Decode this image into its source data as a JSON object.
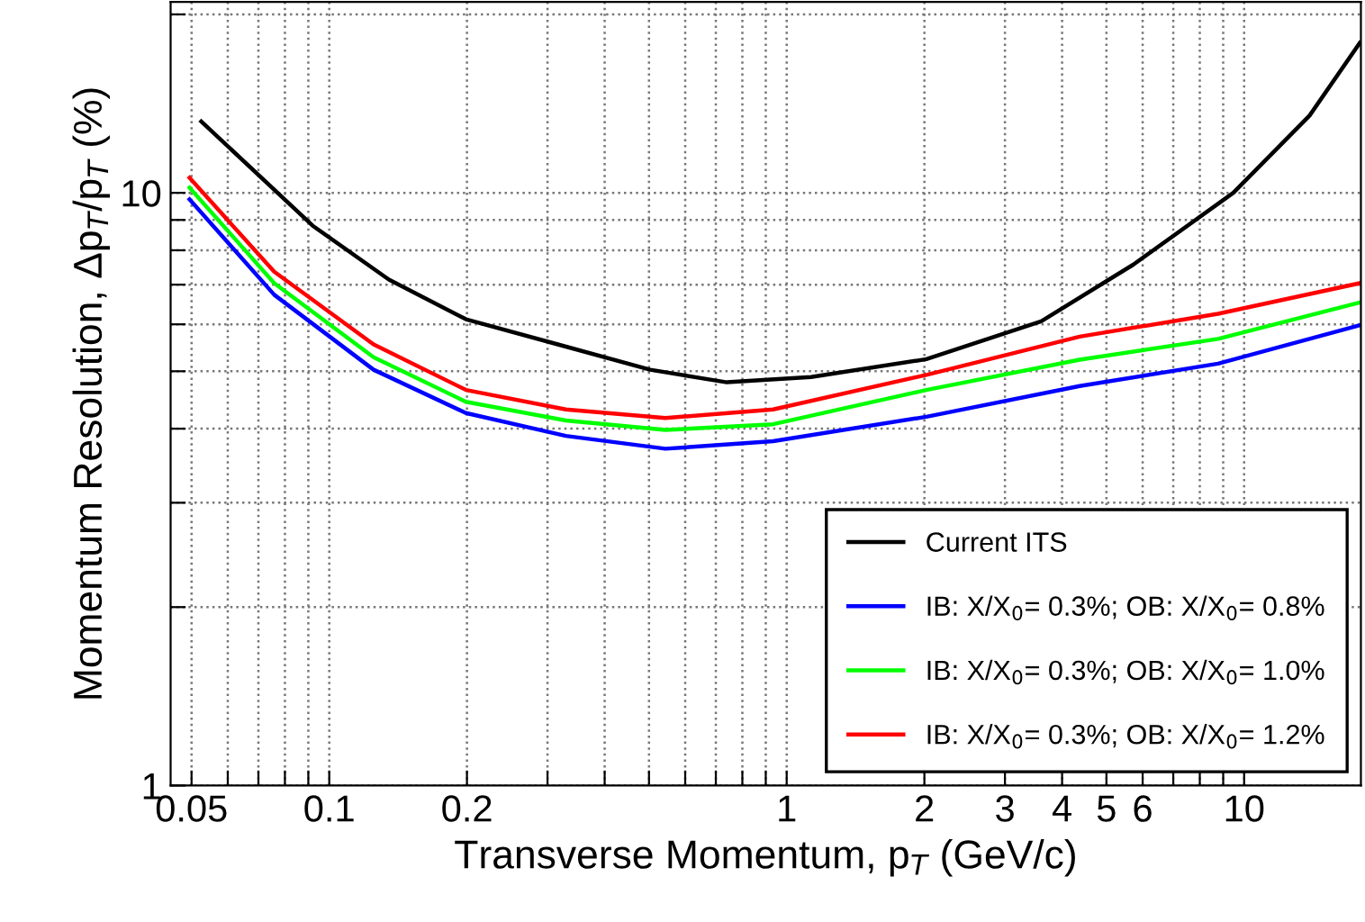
{
  "chart_data": {
    "type": "line",
    "xlabel": "Transverse Momentum, p$_{T}$ (GeV/c)",
    "ylabel": "Momentum Resolution, Δp$_{T}$/p$_{T}$ (%)",
    "log": "xy",
    "grid": true,
    "legend": "bottom right",
    "line_style": "solid",
    "marker": "none",
    "xlim": [
      0.045,
      18
    ],
    "ylim": [
      1,
      21
    ],
    "xticks": [
      0.05,
      {
        "value": 0.06,
        "label": null
      },
      {
        "value": 0.07,
        "label": null
      },
      {
        "value": 0.08,
        "label": null
      },
      {
        "value": 0.09,
        "label": null
      },
      0.1,
      0.2,
      {
        "value": 0.3,
        "label": null
      },
      {
        "value": 0.4,
        "label": null
      },
      {
        "value": 0.5,
        "label": null
      },
      {
        "value": 0.6,
        "label": null
      },
      {
        "value": 0.7,
        "label": null
      },
      {
        "value": 0.8,
        "label": null
      },
      {
        "value": 0.9,
        "label": null
      },
      1,
      2,
      3,
      4,
      5,
      6,
      {
        "value": 7,
        "label": null
      },
      {
        "value": 8,
        "label": null
      },
      {
        "value": 9,
        "label": null
      },
      10
    ],
    "yticks": [
      1,
      {
        "value": 2,
        "label": null
      },
      {
        "value": 3,
        "label": null
      },
      {
        "value": 4,
        "label": null
      },
      {
        "value": 5,
        "label": null
      },
      {
        "value": 6,
        "label": null
      },
      {
        "value": 7,
        "label": null
      },
      {
        "value": 8,
        "label": null
      },
      {
        "value": 9,
        "label": null
      },
      10,
      {
        "value": 20,
        "label": null
      }
    ],
    "series": [
      {
        "name": "Current ITS",
        "color": "#000000",
        "x": [
          0.0525,
          0.092,
          0.135,
          0.199,
          0.316,
          0.503,
          0.74,
          1.13,
          2.02,
          3.6,
          5.73,
          9.47,
          13.9,
          17.9
        ],
        "values": [
          13.2,
          8.8,
          7.14,
          6.12,
          5.55,
          5.03,
          4.79,
          4.89,
          5.24,
          6.07,
          7.57,
          10,
          13.5,
          17.9
        ]
      },
      {
        "name": "IB: X/X$_{0}$= 0.3%; OB: X/X$_{0}$= 0.8%",
        "color": "#0000ff",
        "x": [
          0.0495,
          0.0758,
          0.125,
          0.199,
          0.329,
          0.543,
          0.934,
          2.02,
          4.37,
          8.77,
          17.9
        ],
        "values": [
          9.75,
          6.73,
          5.03,
          4.25,
          3.89,
          3.7,
          3.81,
          4.19,
          4.72,
          5.15,
          5.98
        ]
      },
      {
        "name": "IB: X/X$_{0}$= 0.3%; OB: X/X$_{0}$= 1.0%",
        "color": "#00ff00",
        "x": [
          0.0495,
          0.0758,
          0.125,
          0.199,
          0.329,
          0.543,
          0.934,
          2.02,
          4.37,
          8.77,
          17.9
        ],
        "values": [
          10.2,
          7.04,
          5.28,
          4.44,
          4.13,
          3.98,
          4.07,
          4.65,
          5.23,
          5.67,
          6.53
        ]
      },
      {
        "name": "IB: X/X$_{0}$= 0.3%; OB: X/X$_{0}$= 1.2%",
        "color": "#ff0000",
        "x": [
          0.0495,
          0.0758,
          0.125,
          0.199,
          0.329,
          0.543,
          0.934,
          2.02,
          4.37,
          8.77,
          17.9
        ],
        "values": [
          10.6,
          7.36,
          5.55,
          4.65,
          4.31,
          4.17,
          4.31,
          4.93,
          5.72,
          6.25,
          7.04
        ]
      }
    ]
  }
}
